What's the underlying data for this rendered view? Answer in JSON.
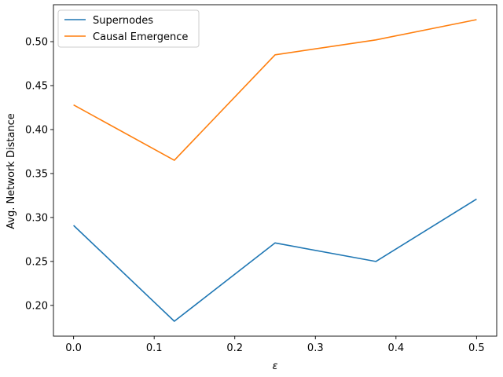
{
  "chart_data": {
    "type": "line",
    "xlabel": "ε",
    "ylabel": "Avg. Network Distance",
    "xlim": [
      -0.025,
      0.525
    ],
    "ylim": [
      0.165,
      0.542
    ],
    "x_ticks": [
      "0.0",
      "0.1",
      "0.2",
      "0.3",
      "0.4",
      "0.5"
    ],
    "x_tick_values": [
      0.0,
      0.1,
      0.2,
      0.3,
      0.4,
      0.5
    ],
    "y_ticks": [
      "0.20",
      "0.25",
      "0.30",
      "0.35",
      "0.40",
      "0.45",
      "0.50"
    ],
    "y_tick_values": [
      0.2,
      0.25,
      0.3,
      0.35,
      0.4,
      0.45,
      0.5
    ],
    "grid": false,
    "legend_position": "upper-left",
    "x": [
      0.0,
      0.125,
      0.25,
      0.375,
      0.5
    ],
    "series": [
      {
        "name": "Supernodes",
        "color": "#1f77b4",
        "values": [
          0.291,
          0.182,
          0.271,
          0.25,
          0.321
        ]
      },
      {
        "name": "Causal Emergence",
        "color": "#ff7f0e",
        "values": [
          0.428,
          0.365,
          0.485,
          0.502,
          0.525
        ]
      }
    ]
  }
}
